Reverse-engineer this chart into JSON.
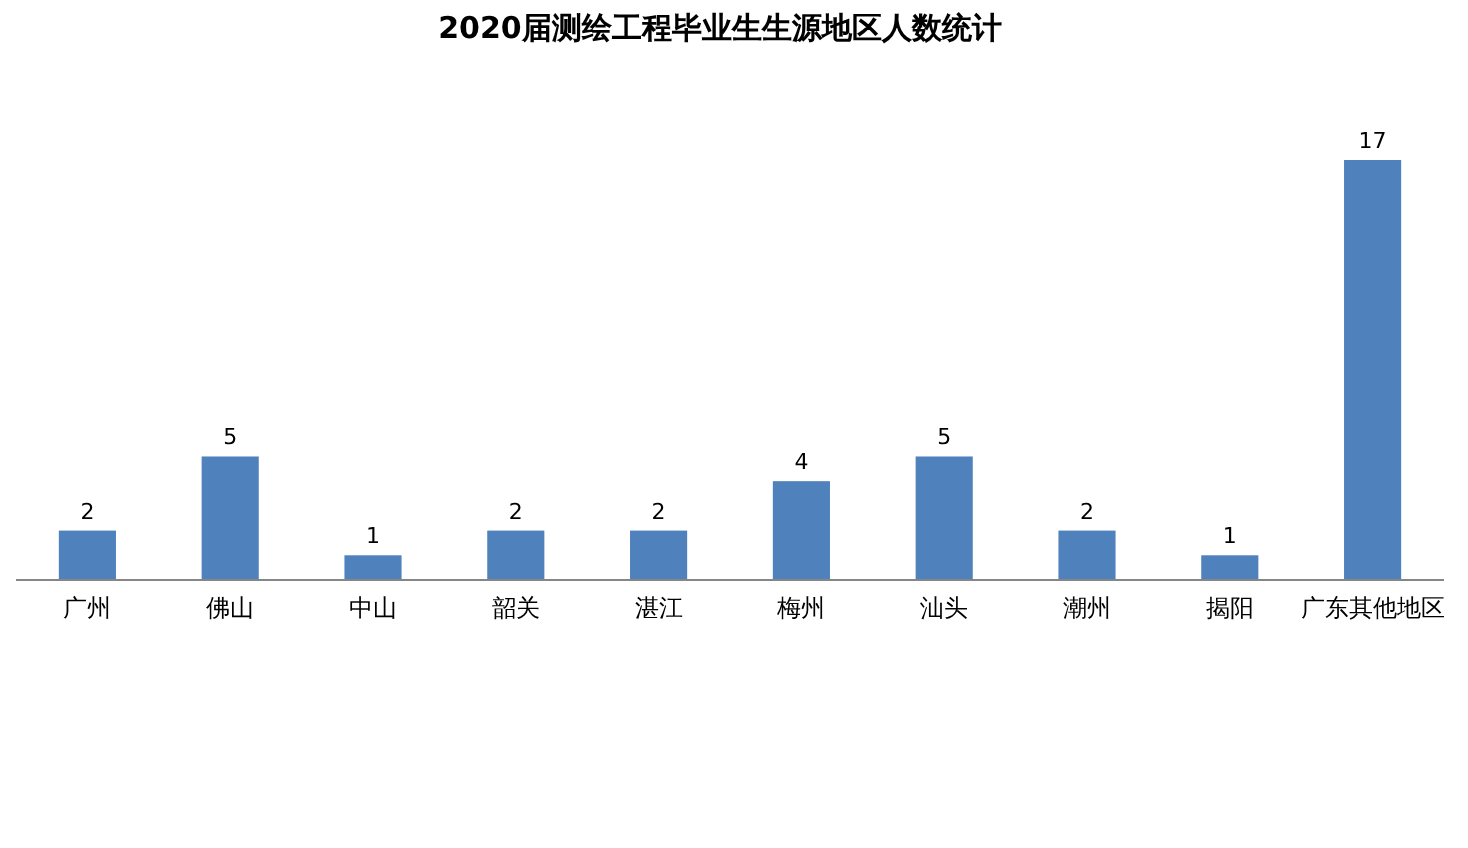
{
  "chart_data": {
    "type": "bar",
    "title": "2020届测绘工程毕业生生源地区人数统计",
    "categories": [
      "广州",
      "佛山",
      "中山",
      "韶关",
      "湛江",
      "梅州",
      "汕头",
      "潮州",
      "揭阳",
      "广东其他地区"
    ],
    "values": [
      2,
      5,
      1,
      2,
      2,
      4,
      5,
      2,
      1,
      17
    ],
    "color": "#4f81bd",
    "data_labels": true
  }
}
